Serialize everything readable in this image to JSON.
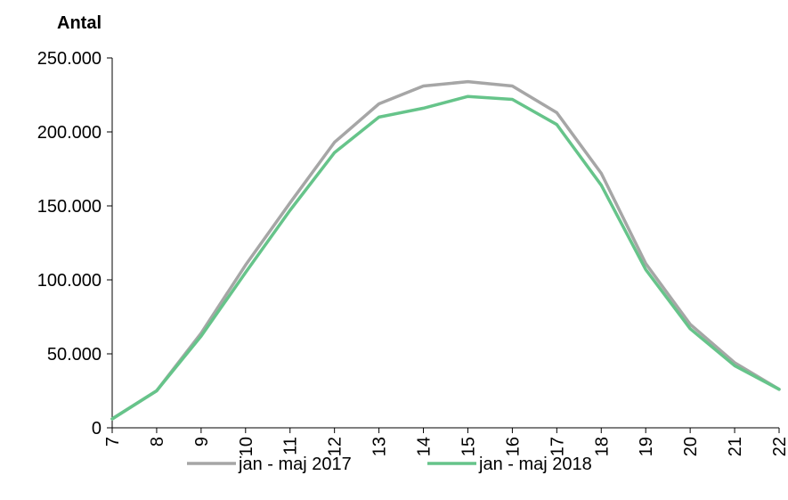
{
  "chart_data": {
    "type": "line",
    "ylabel": "Antal",
    "xlabel": "",
    "x": [
      "7",
      "8",
      "9",
      "10",
      "11",
      "12",
      "13",
      "14",
      "15",
      "16",
      "17",
      "18",
      "19",
      "20",
      "21",
      "22"
    ],
    "ylim": [
      0,
      250000
    ],
    "yticks": [
      0,
      50000,
      100000,
      150000,
      200000,
      250000
    ],
    "ytick_labels": [
      "0",
      "50.000",
      "100.000",
      "150.000",
      "200.000",
      "250.000"
    ],
    "grid": false,
    "legend_position": "bottom",
    "series": [
      {
        "name": "jan - maj 2017",
        "color": "#a6a6a6",
        "values": [
          6000,
          25000,
          64000,
          110000,
          152000,
          193000,
          219000,
          231000,
          234000,
          231000,
          213000,
          172000,
          111000,
          70000,
          44000,
          26000
        ]
      },
      {
        "name": "jan - maj 2018",
        "color": "#66c48a",
        "values": [
          6000,
          25000,
          62000,
          105000,
          147000,
          186000,
          210000,
          216000,
          224000,
          222000,
          205000,
          164000,
          107000,
          67000,
          42000,
          26000
        ]
      }
    ]
  }
}
